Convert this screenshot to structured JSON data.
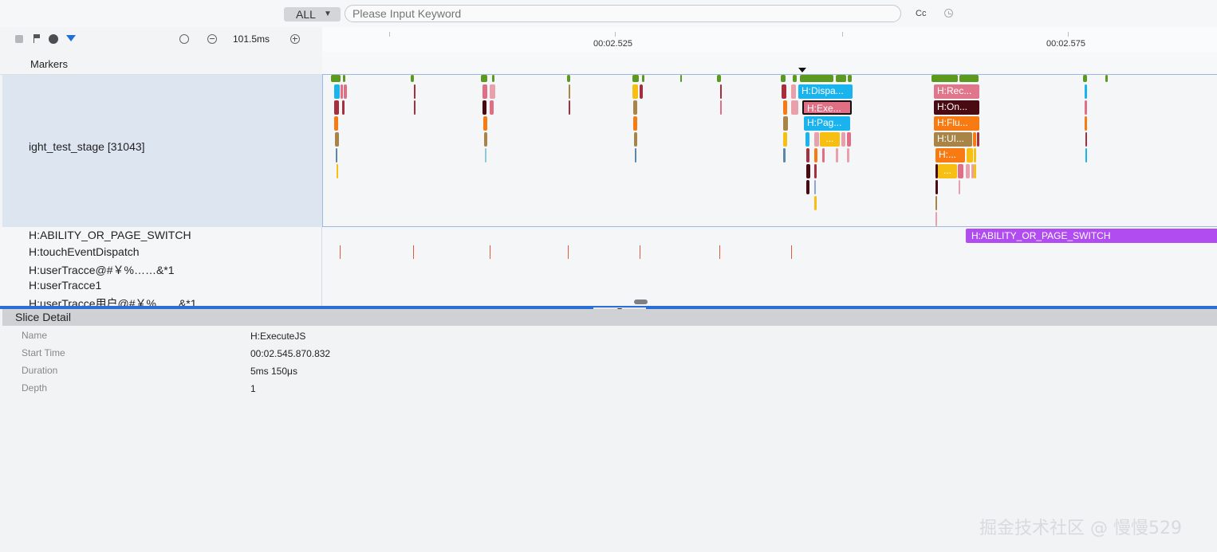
{
  "search": {
    "scope": "ALL",
    "placeholder": "Please Input Keyword",
    "case_label": "Cc",
    "icons": [
      "caret-down-icon",
      "history-icon"
    ]
  },
  "toolbar": {
    "zoom_level": "101.5ms",
    "icons": [
      "stop-icon",
      "flag-icon",
      "globe-icon",
      "filter-icon",
      "reset-icon",
      "zoom-out-icon",
      "zoom-in-icon"
    ]
  },
  "ruler": {
    "labels": [
      "00:02.525",
      "00:02.575"
    ]
  },
  "markers": {
    "label": "Markers"
  },
  "process": {
    "name": "ight_test_stage [31043]",
    "slices": [
      {
        "label": "H:Dispa...",
        "color": "#19b4ee"
      },
      {
        "label": "H:Exe...",
        "color": "#e06f86"
      },
      {
        "label": "H:Pag...",
        "color": "#19b4ee"
      },
      {
        "label": "...",
        "color": "#f6bf12"
      },
      {
        "label": "H:Rec...",
        "color": "#e0768c"
      },
      {
        "label": "H:On...",
        "color": "#4a0a12"
      },
      {
        "label": "H:Flu...",
        "color": "#f77b12"
      },
      {
        "label": "H:UI...",
        "color": "#a88446"
      },
      {
        "label": "H:...",
        "color": "#f77b12"
      },
      {
        "label": "...",
        "color": "#f6bf12"
      }
    ]
  },
  "threads": [
    {
      "name": "H:ABILITY_OR_PAGE_SWITCH",
      "slice_label": "H:ABILITY_OR_PAGE_SWITCH"
    },
    {
      "name": "H:touchEventDispatch"
    },
    {
      "name": "H:userTracce@#￥%……&*1"
    },
    {
      "name": "H:userTracce1"
    },
    {
      "name": "H:userTracce用户@#￥%……&*1"
    }
  ],
  "detail": {
    "title": "Slice Detail",
    "rows": [
      {
        "key": "Name",
        "value": "H:ExecuteJS"
      },
      {
        "key": "Start Time",
        "value": "00:02.545.870.832"
      },
      {
        "key": "Duration",
        "value": "5ms 150μs"
      },
      {
        "key": "Depth",
        "value": "1"
      }
    ]
  },
  "watermark": "掘金技术社区 @ 慢慢529"
}
